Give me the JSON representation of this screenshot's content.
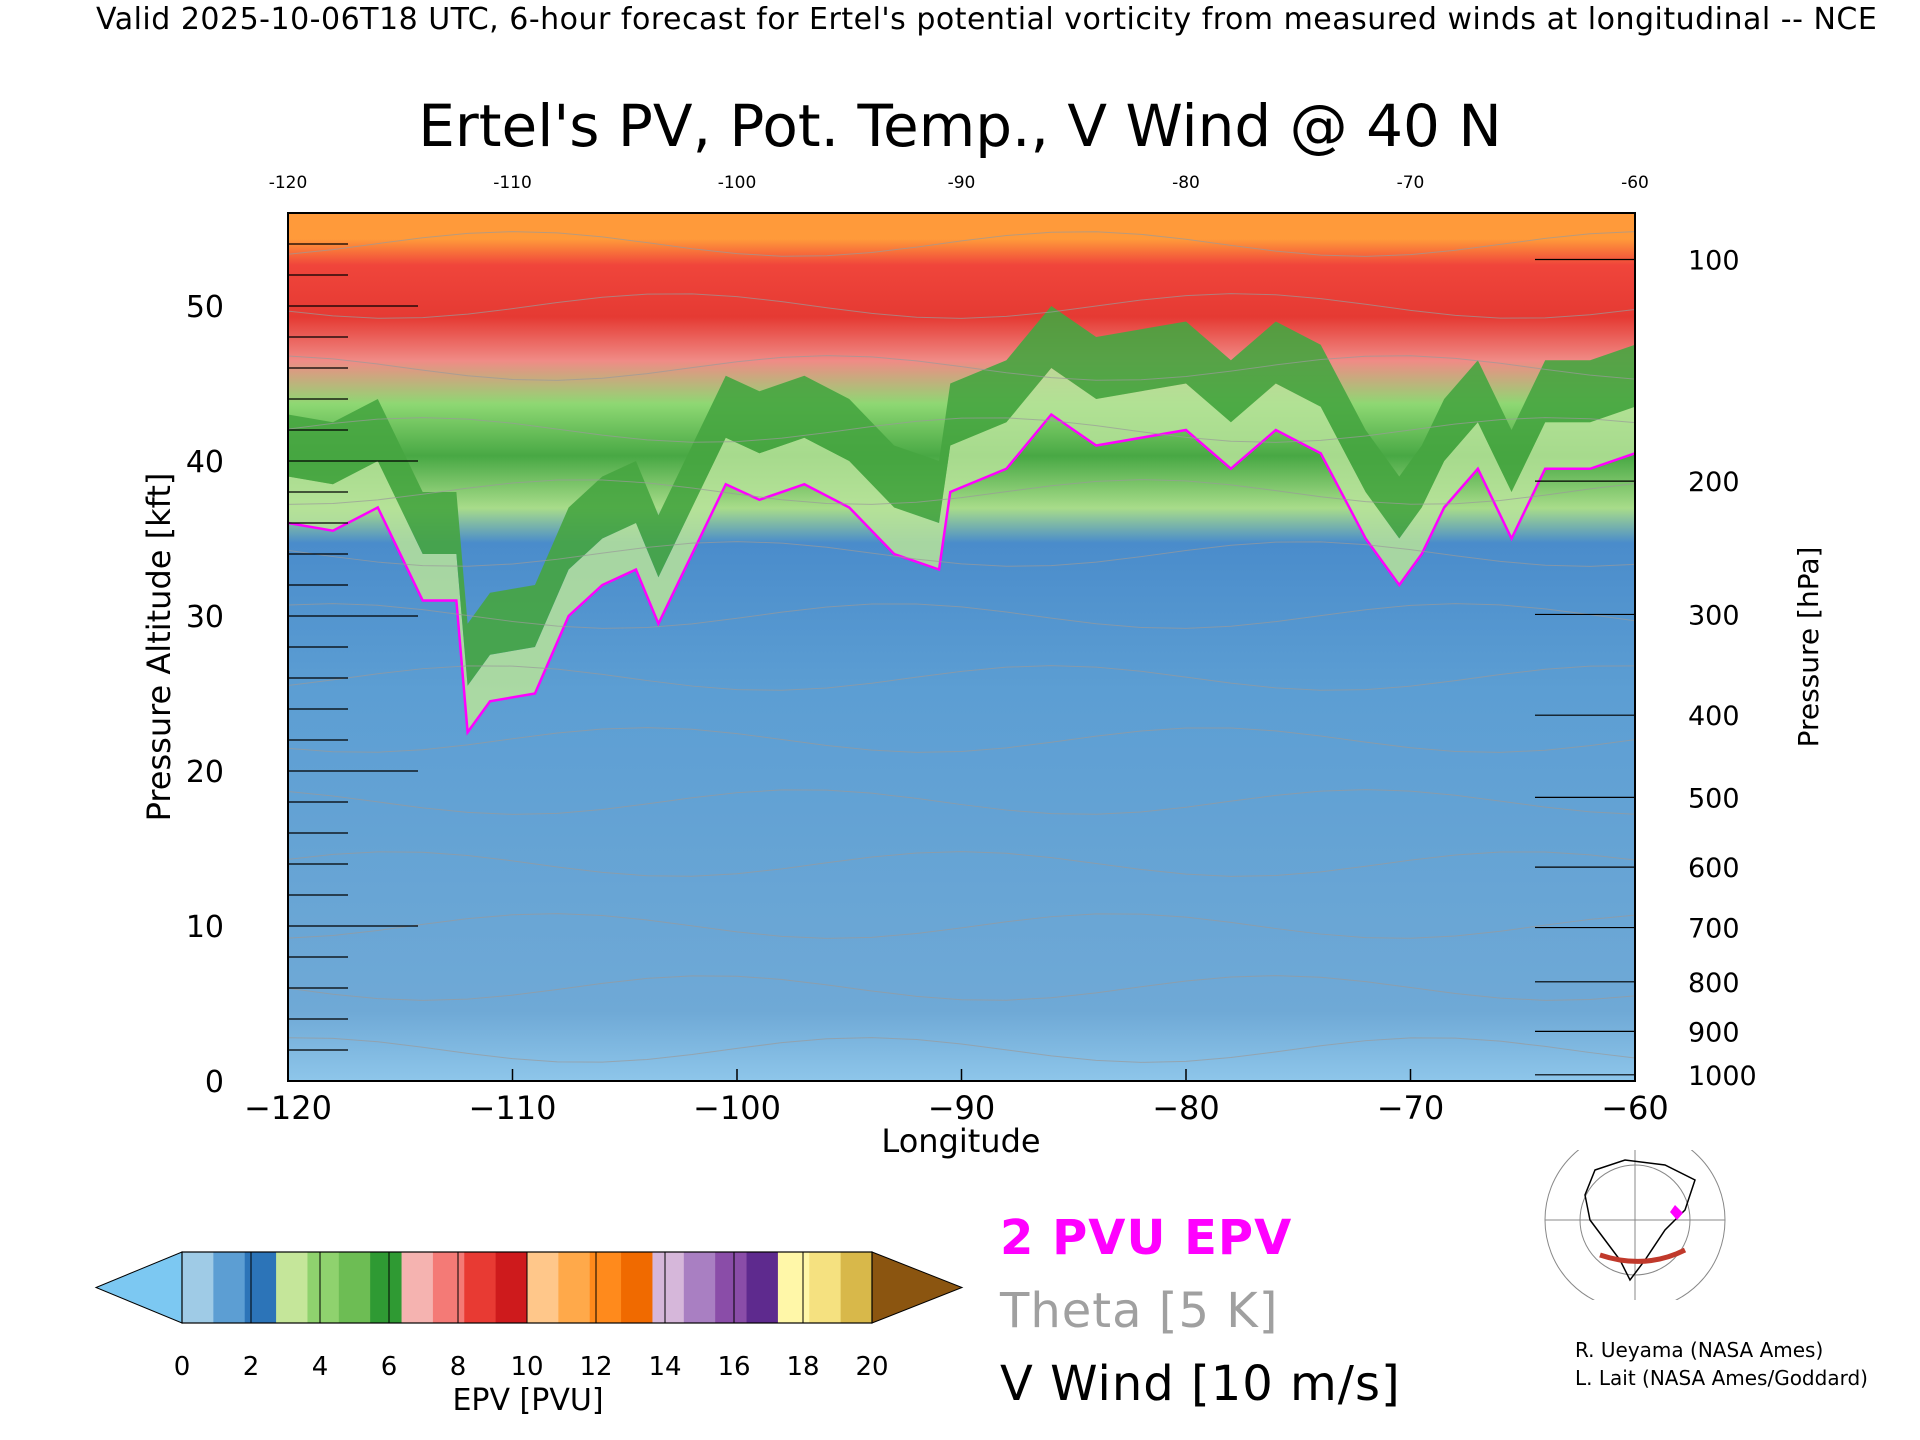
{
  "header": "Valid 2025-10-06T18 UTC, 6-hour forecast for Ertel's potential vorticity from measured winds at longitudinal -- NCE",
  "chart_data": {
    "type": "heatmap",
    "title": "Ertel's PV, Pot. Temp., V Wind @ 40 N",
    "xlabel": "Longitude",
    "ylabel_left": "Pressure Altitude [kft]",
    "ylabel_right": "Pressure [hPa]",
    "xlim": [
      -120,
      -60
    ],
    "ylim": [
      0,
      56
    ],
    "x_ticks": [
      -120,
      -110,
      -100,
      -90,
      -80,
      -70,
      -60
    ],
    "x_tick_labels": [
      "−120",
      "−110",
      "−100",
      "−90",
      "−80",
      "−70",
      "−60"
    ],
    "y_ticks_left": [
      0,
      10,
      20,
      30,
      40,
      50
    ],
    "y_ticks_right": [
      {
        "label": "100",
        "kft": 53.0
      },
      {
        "label": "200",
        "kft": 38.7
      },
      {
        "label": "300",
        "kft": 30.1
      },
      {
        "label": "400",
        "kft": 23.6
      },
      {
        "label": "500",
        "kft": 18.3
      },
      {
        "label": "600",
        "kft": 13.8
      },
      {
        "label": "700",
        "kft": 9.9
      },
      {
        "label": "800",
        "kft": 6.4
      },
      {
        "label": "900",
        "kft": 3.2
      },
      {
        "label": "1000",
        "kft": 0.4
      }
    ],
    "tropopause_2pvu_kft": [
      [
        -120,
        36.0
      ],
      [
        -118,
        35.5
      ],
      [
        -116,
        37.0
      ],
      [
        -114,
        31.0
      ],
      [
        -112.5,
        31.0
      ],
      [
        -112,
        22.5
      ],
      [
        -111,
        24.5
      ],
      [
        -109,
        25.0
      ],
      [
        -107.5,
        30.0
      ],
      [
        -106,
        32.0
      ],
      [
        -104.5,
        33.0
      ],
      [
        -103.5,
        29.5
      ],
      [
        -102,
        34.0
      ],
      [
        -100.5,
        38.5
      ],
      [
        -99,
        37.5
      ],
      [
        -97,
        38.5
      ],
      [
        -95,
        37.0
      ],
      [
        -93,
        34.0
      ],
      [
        -91,
        33.0
      ],
      [
        -90.5,
        38.0
      ],
      [
        -88,
        39.5
      ],
      [
        -86,
        43.0
      ],
      [
        -84,
        41.0
      ],
      [
        -82,
        41.5
      ],
      [
        -80,
        42.0
      ],
      [
        -78,
        39.5
      ],
      [
        -76,
        42.0
      ],
      [
        -74,
        40.5
      ],
      [
        -72,
        35.0
      ],
      [
        -70.5,
        32.0
      ],
      [
        -69.5,
        34.0
      ],
      [
        -68.5,
        37.0
      ],
      [
        -67,
        39.5
      ],
      [
        -65.5,
        35.0
      ],
      [
        -64,
        39.5
      ],
      [
        -62,
        39.5
      ],
      [
        -60,
        40.5
      ]
    ],
    "colorbar": {
      "label": "EPV [PVU]",
      "ticks": [
        "0",
        "2",
        "4",
        "6",
        "8",
        "10",
        "12",
        "14",
        "16",
        "18",
        "20"
      ],
      "colors": [
        "#7cc8f2",
        "#9fcbe6",
        "#5c9ed3",
        "#2c74b8",
        "#c5e69a",
        "#8fd26e",
        "#6dbd54",
        "#2f9a33",
        "#f5b3b0",
        "#f47a76",
        "#e83a33",
        "#ce1a1c",
        "#ffc78a",
        "#ffa94a",
        "#ff8a1c",
        "#f06a00",
        "#d6b7da",
        "#a97fc2",
        "#8a4da8",
        "#5e2a8e",
        "#fff7a8",
        "#f5e180",
        "#d8b84a",
        "#8b5510"
      ]
    }
  },
  "legend": {
    "pv_line": "2 PVU EPV",
    "theta_line": "Theta [5 K]",
    "wind_line": "V Wind [10 m/s]",
    "pv_color": "#ff00ff",
    "theta_color": "#a0a0a0"
  },
  "credits": [
    "R. Ueyama (NASA Ames)",
    "L. Lait (NASA Ames/Goddard)"
  ]
}
